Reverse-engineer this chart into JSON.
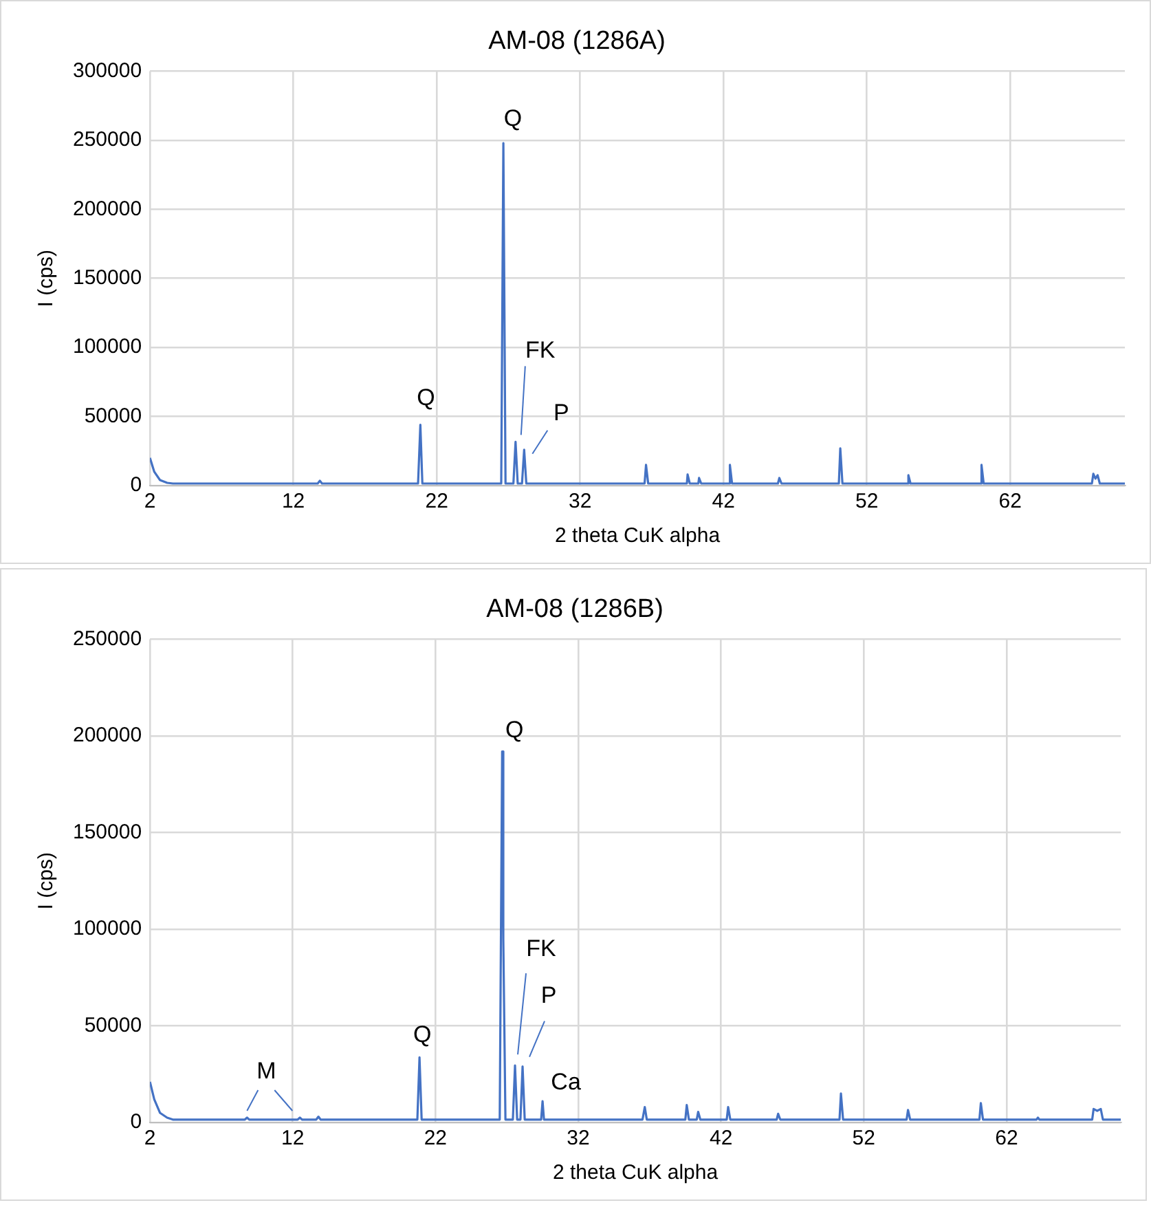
{
  "chart_data": [
    {
      "type": "line",
      "title": "AM-08 (1286A)",
      "xlabel": "2 theta CuK alpha",
      "ylabel": "I (cps)",
      "xlim": [
        2,
        70
      ],
      "xticks": [
        2,
        12,
        22,
        32,
        42,
        52,
        62
      ],
      "ylim": [
        0,
        300000
      ],
      "yticks": [
        0,
        50000,
        100000,
        150000,
        200000,
        250000,
        300000
      ],
      "grid": true,
      "legend": false,
      "marker": "none",
      "line_style": "solid",
      "series": [
        {
          "color": "#4472c4",
          "x": [
            2,
            2.3,
            2.7,
            3.2,
            3.6,
            13.7,
            13.85,
            14.0,
            20.7,
            20.86,
            21.0,
            26.5,
            26.65,
            26.8,
            27.35,
            27.5,
            27.65,
            27.95,
            28.1,
            28.25,
            36.5,
            36.6,
            36.75,
            39.45,
            39.5,
            39.65,
            40.25,
            40.3,
            40.45,
            42.4,
            42.45,
            42.6,
            45.8,
            45.9,
            46.05,
            50.05,
            50.15,
            50.3,
            54.85,
            54.9,
            55.05,
            59.95,
            60.0,
            60.15,
            67.7,
            67.8,
            67.95,
            68.1,
            68.25,
            70
          ],
          "values": [
            20000,
            10000,
            4000,
            2000,
            1500,
            1500,
            3500,
            1500,
            1500,
            44000,
            1500,
            1500,
            248000,
            1500,
            1500,
            31700,
            1500,
            1500,
            26000,
            1500,
            1500,
            15000,
            1500,
            1500,
            8000,
            1500,
            1500,
            5500,
            1500,
            1500,
            15000,
            1500,
            1500,
            5500,
            1500,
            1500,
            27000,
            1500,
            1500,
            7500,
            1500,
            1500,
            15000,
            1500,
            1500,
            8500,
            5000,
            7500,
            1500,
            1500
          ]
        }
      ],
      "annotations": [
        {
          "text": "Q",
          "x": 20.86,
          "y": 44000
        },
        {
          "text": "Q",
          "x": 26.65,
          "y": 248000
        },
        {
          "text": "FK",
          "x": 27.5,
          "y": 31700
        },
        {
          "text": "P",
          "x": 28.1,
          "y": 26000
        }
      ]
    },
    {
      "type": "line",
      "title": "AM-08 (1286B)",
      "xlabel": "2 theta CuK alpha",
      "ylabel": "I (cps)",
      "xlim": [
        2,
        70
      ],
      "xticks": [
        2,
        12,
        22,
        32,
        42,
        52,
        62
      ],
      "ylim": [
        0,
        250000
      ],
      "yticks": [
        0,
        50000,
        100000,
        150000,
        200000,
        250000
      ],
      "grid": true,
      "legend": false,
      "marker": "none",
      "line_style": "solid",
      "series": [
        {
          "color": "#4472c4",
          "x": [
            2,
            2.3,
            2.7,
            3.2,
            3.6,
            8.65,
            8.8,
            8.95,
            12.35,
            12.5,
            12.65,
            13.65,
            13.8,
            13.95,
            20.73,
            20.88,
            21.03,
            26.5,
            26.67,
            26.75,
            26.9,
            27.42,
            27.57,
            27.72,
            27.95,
            28.1,
            28.25,
            29.4,
            29.5,
            29.6,
            36.5,
            36.66,
            36.8,
            39.5,
            39.6,
            39.75,
            40.3,
            40.4,
            40.55,
            42.4,
            42.5,
            42.65,
            45.9,
            46.0,
            46.15,
            50.3,
            50.4,
            50.55,
            55.0,
            55.1,
            55.25,
            60.1,
            60.2,
            60.35,
            64.1,
            64.2,
            64.3,
            68.0,
            68.1,
            68.35,
            68.6,
            68.75,
            70
          ],
          "values": [
            21000,
            12000,
            5000,
            2500,
            1500,
            1500,
            2500,
            1500,
            1500,
            2500,
            1500,
            1500,
            3000,
            1500,
            1500,
            33700,
            1500,
            1500,
            192000,
            95000,
            1500,
            1500,
            29500,
            1500,
            1500,
            29000,
            1500,
            1500,
            11000,
            1500,
            1500,
            8000,
            1500,
            1500,
            9000,
            1500,
            1500,
            5500,
            1500,
            1500,
            8000,
            1500,
            1500,
            4500,
            1500,
            1500,
            15000,
            1500,
            1500,
            6500,
            1500,
            1500,
            10000,
            1500,
            1500,
            2500,
            1500,
            1500,
            7000,
            6000,
            7000,
            1500,
            1500
          ]
        }
      ],
      "annotations": [
        {
          "text": "M",
          "x": 8.8,
          "y": 2500
        },
        {
          "text": "Q",
          "x": 20.88,
          "y": 33700
        },
        {
          "text": "Q",
          "x": 26.67,
          "y": 192000
        },
        {
          "text": "FK",
          "x": 27.57,
          "y": 29500
        },
        {
          "text": "P",
          "x": 28.1,
          "y": 29000
        },
        {
          "text": "Ca",
          "x": 29.5,
          "y": 11000
        }
      ]
    }
  ]
}
